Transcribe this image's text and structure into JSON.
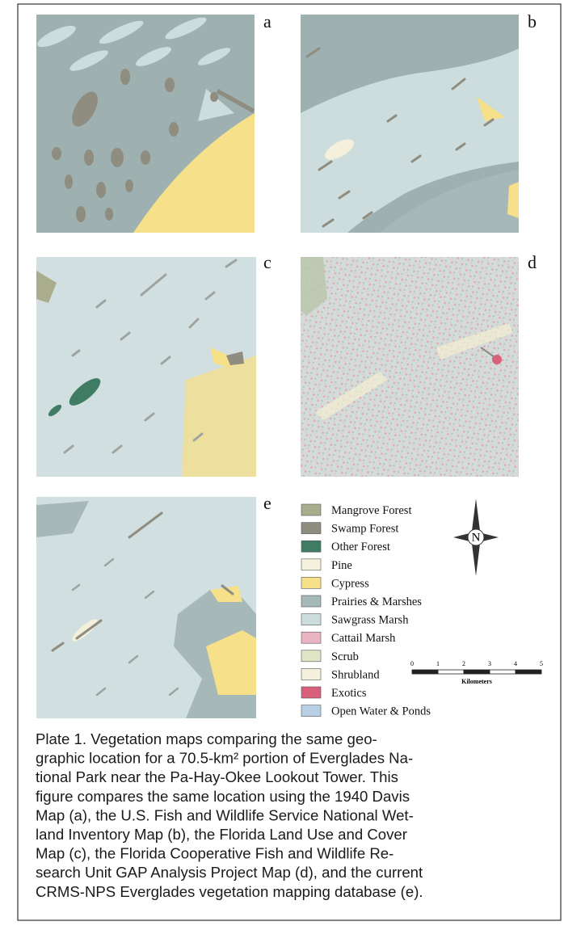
{
  "panels": [
    {
      "label": "a"
    },
    {
      "label": "b"
    },
    {
      "label": "c"
    },
    {
      "label": "d"
    },
    {
      "label": "e"
    }
  ],
  "legend": {
    "items": [
      {
        "name": "Mangrove Forest",
        "color": "#a9ad8c"
      },
      {
        "name": "Swamp Forest",
        "color": "#8f8c80"
      },
      {
        "name": "Other Forest",
        "color": "#3e7d63"
      },
      {
        "name": "Pine",
        "color": "#f6f1dd"
      },
      {
        "name": "Cypress",
        "color": "#f6e08a"
      },
      {
        "name": "Prairies & Marshes",
        "color": "#a7b8b9"
      },
      {
        "name": "Sawgrass Marsh",
        "color": "#cddcdc"
      },
      {
        "name": "Cattail Marsh",
        "color": "#eab4c2"
      },
      {
        "name": "Scrub",
        "color": "#dfe6c6"
      },
      {
        "name": "Shrubland",
        "color": "#f4f0dc"
      },
      {
        "name": "Exotics",
        "color": "#d8607a"
      },
      {
        "name": "Open Water & Ponds",
        "color": "#b8d0e6"
      }
    ]
  },
  "compass": {
    "label": "N"
  },
  "scale_bar": {
    "labels": [
      0,
      1,
      2,
      3,
      4,
      5
    ],
    "unit": "Kilometers"
  },
  "caption": {
    "lines": [
      "Plate 1. Vegetation maps comparing the same geo-",
      "graphic location for a 70.5-km² portion of Everglades Na-",
      "tional Park near the Pa-Hay-Okee Lookout Tower. This",
      "figure compares the same location using the 1940 Davis",
      "Map (a), the U.S. Fish and Wildlife Service National Wet-",
      "land Inventory Map (b), the Florida Land Use and Cover",
      "Map (c), the Florida Cooperative Fish and Wildlife Re-",
      "search Unit GAP Analysis Project Map (d), and the current",
      "CRMS-NPS Everglades vegetation mapping database (e)."
    ]
  }
}
